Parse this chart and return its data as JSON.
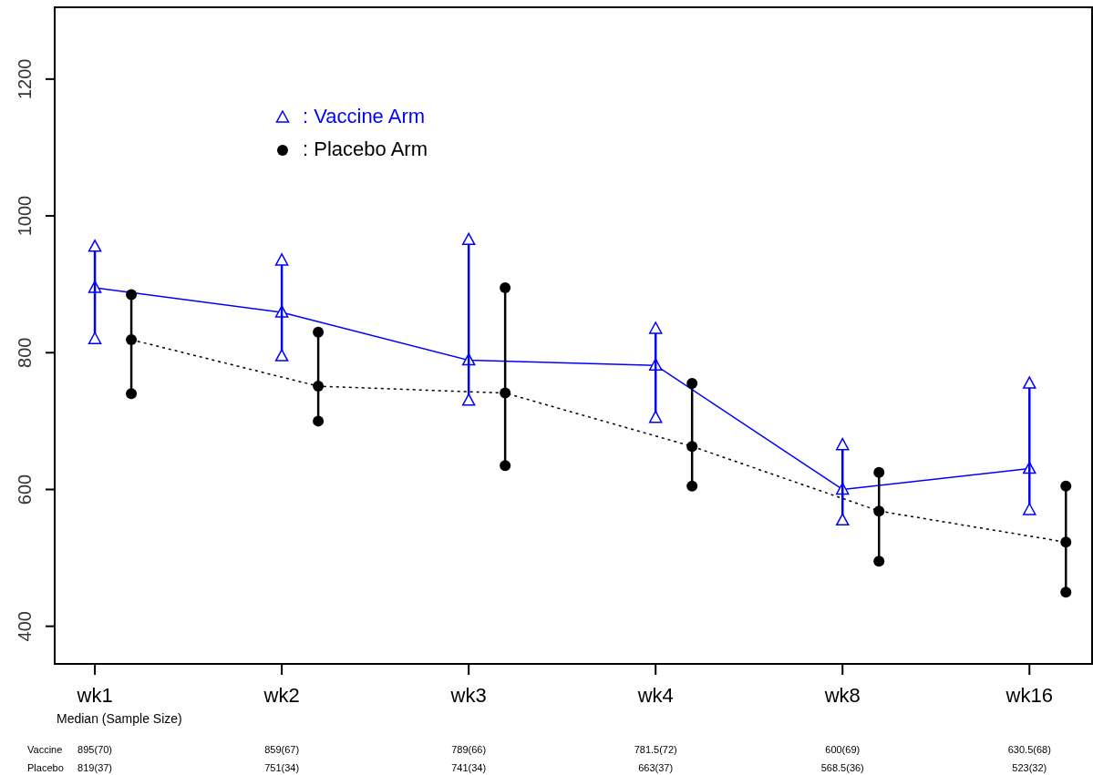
{
  "chart_data": {
    "type": "line",
    "categories": [
      "wk1",
      "wk2",
      "wk3",
      "wk4",
      "wk8",
      "wk16"
    ],
    "series": [
      {
        "name": ": Vaccine Arm",
        "color": "#0000ff",
        "marker": "triangle",
        "line_style": "solid",
        "values": [
          895,
          859,
          789,
          781.5,
          600,
          630.5
        ],
        "value_labels": [
          "895(70)",
          "859(67)",
          "789(66)",
          "781.5(72)",
          "600(69)",
          "630.5(68)"
        ]
      },
      {
        "name": ": Placebo Arm",
        "color": "#000000",
        "marker": "circle",
        "line_style": "dotted",
        "values": [
          819,
          751,
          741,
          663,
          568.5,
          523
        ],
        "value_labels": [
          "819(37)",
          "751(34)",
          "741(34)",
          "663(37)",
          "568.5(36)",
          "523(32)"
        ]
      },
      {
        "type": "scatter",
        "color": "#0000ff",
        "marker": "triangle",
        "x": [
          "wk1",
          "wk2",
          "wk3",
          "wk4",
          "wk8",
          "wk16"
        ],
        "values": [
          820,
          795,
          730,
          705,
          555,
          570
        ]
      },
      {
        "type": "scatter",
        "color": "#000000",
        "marker": "circle",
        "x": [
          "wk1",
          "wk2",
          "wk3",
          "wk4",
          "wk8",
          "wk16"
        ],
        "values": [
          740,
          700,
          635,
          605,
          495,
          450
        ]
      },
      {
        "type": "scatter",
        "color": "#0000ff",
        "marker": "triangle",
        "x": [
          "wk1",
          "wk2",
          "wk3",
          "wk4",
          "wk8",
          "wk16"
        ],
        "values": [
          955,
          935,
          965,
          835,
          665,
          755
        ]
      },
      {
        "type": "scatter",
        "color": "#000000",
        "marker": "circle",
        "x": [
          "wk1",
          "wk2",
          "wk3",
          "wk4",
          "wk8",
          "wk16"
        ],
        "values": [
          885,
          830,
          895,
          755,
          625,
          605
        ]
      }
    ],
    "ylim": [
      345,
      1305
    ],
    "yticks": [
      400,
      600,
      800,
      1000,
      1200
    ],
    "grid": false,
    "legend": "top left",
    "annotations": [
      "Median (Sample Size)",
      "Vaccine",
      "Placebo"
    ]
  }
}
